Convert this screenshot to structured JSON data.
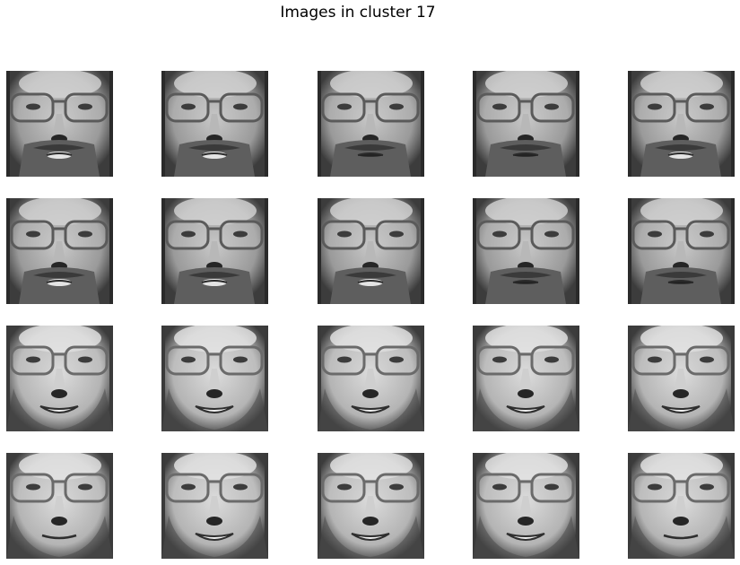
{
  "figure": {
    "title": "Images in cluster 17"
  },
  "grid": {
    "rows": 4,
    "cols": 5,
    "images": [
      {
        "person": "bearded",
        "glasses": true,
        "expression": "mouth-open"
      },
      {
        "person": "bearded",
        "glasses": true,
        "expression": "mouth-open"
      },
      {
        "person": "bearded",
        "glasses": true,
        "expression": "neutral"
      },
      {
        "person": "bearded",
        "glasses": true,
        "expression": "neutral"
      },
      {
        "person": "bearded",
        "glasses": true,
        "expression": "mouth-open"
      },
      {
        "person": "bearded",
        "glasses": true,
        "expression": "mouth-open"
      },
      {
        "person": "bearded",
        "glasses": true,
        "expression": "mouth-open"
      },
      {
        "person": "bearded",
        "glasses": true,
        "expression": "mouth-open"
      },
      {
        "person": "bearded",
        "glasses": true,
        "expression": "neutral"
      },
      {
        "person": "bearded",
        "glasses": true,
        "expression": "neutral"
      },
      {
        "person": "clean-shaven",
        "glasses": true,
        "expression": "smiling"
      },
      {
        "person": "clean-shaven",
        "glasses": true,
        "expression": "smiling"
      },
      {
        "person": "clean-shaven",
        "glasses": true,
        "expression": "smiling"
      },
      {
        "person": "clean-shaven",
        "glasses": true,
        "expression": "smiling"
      },
      {
        "person": "clean-shaven",
        "glasses": true,
        "expression": "smiling"
      },
      {
        "person": "clean-shaven",
        "glasses": true,
        "expression": "neutral"
      },
      {
        "person": "clean-shaven",
        "glasses": true,
        "expression": "smiling"
      },
      {
        "person": "clean-shaven",
        "glasses": true,
        "expression": "smiling"
      },
      {
        "person": "clean-shaven",
        "glasses": true,
        "expression": "smiling"
      },
      {
        "person": "clean-shaven",
        "glasses": true,
        "expression": "neutral"
      }
    ]
  }
}
